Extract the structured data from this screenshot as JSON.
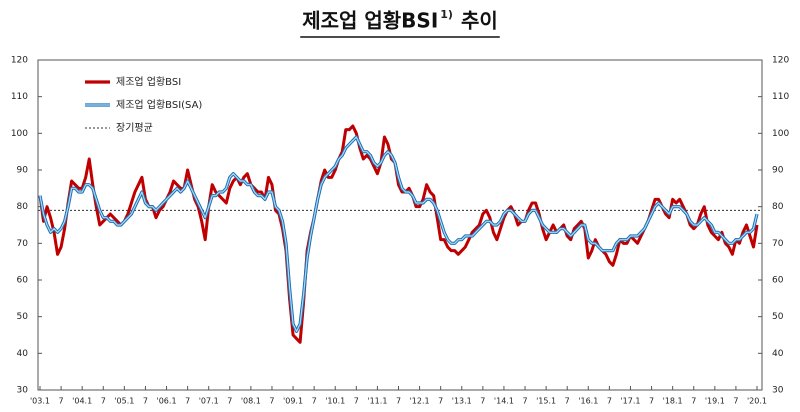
{
  "chart_data": {
    "type": "line",
    "title": "제조업 업황BSI",
    "title_note": "1)",
    "title_suffix": "추이",
    "categories": [
      "'03.1",
      null,
      null,
      null,
      null,
      null,
      "7",
      null,
      null,
      null,
      null,
      null,
      "'04.1",
      null,
      null,
      null,
      null,
      null,
      "7",
      null,
      null,
      null,
      null,
      null,
      "'05.1",
      null,
      null,
      null,
      null,
      null,
      "7",
      null,
      null,
      null,
      null,
      null,
      "'06.1",
      null,
      null,
      null,
      null,
      null,
      "7",
      null,
      null,
      null,
      null,
      null,
      "'07.1",
      null,
      null,
      null,
      null,
      null,
      "7",
      null,
      null,
      null,
      null,
      null,
      "'08.1",
      null,
      null,
      null,
      null,
      null,
      "7",
      null,
      null,
      null,
      null,
      null,
      "'09.1",
      null,
      null,
      null,
      null,
      null,
      "7",
      null,
      null,
      null,
      null,
      null,
      "'10.1",
      null,
      null,
      null,
      null,
      null,
      "7",
      null,
      null,
      null,
      null,
      null,
      "'11.1",
      null,
      null,
      null,
      null,
      null,
      "7",
      null,
      null,
      null,
      null,
      null,
      "'12.1",
      null,
      null,
      null,
      null,
      null,
      "7",
      null,
      null,
      null,
      null,
      null,
      "'13.1",
      null,
      null,
      null,
      null,
      null,
      "7",
      null,
      null,
      null,
      null,
      null,
      "'14.1",
      null,
      null,
      null,
      null,
      null,
      "7",
      null,
      null,
      null,
      null,
      null,
      "'15.1",
      null,
      null,
      null,
      null,
      null,
      "7",
      null,
      null,
      null,
      null,
      null,
      "'16.1",
      null,
      null,
      null,
      null,
      null,
      "7",
      null,
      null,
      null,
      null,
      null,
      "'17.1",
      null,
      null,
      null,
      null,
      null,
      "7",
      null,
      null,
      null,
      null,
      null,
      "'18.1",
      null,
      null,
      null,
      null,
      null,
      "7",
      null,
      null,
      null,
      null,
      null,
      "'19.1",
      null,
      null,
      null,
      null,
      null,
      "7",
      null,
      null,
      null,
      null,
      null,
      "'20.1"
    ],
    "series": [
      {
        "name": "제조업 업황BSI",
        "color": "#c00000",
        "values": [
          83,
          76,
          80,
          77,
          73,
          67,
          69,
          74,
          81,
          87,
          86,
          85,
          85,
          88,
          93,
          86,
          80,
          75,
          76,
          77,
          78,
          77,
          76,
          75,
          76,
          78,
          81,
          84,
          86,
          88,
          82,
          80,
          80,
          77,
          79,
          80,
          82,
          84,
          87,
          86,
          85,
          85,
          90,
          86,
          82,
          80,
          76,
          71,
          80,
          86,
          84,
          83,
          82,
          81,
          85,
          87,
          88,
          86,
          88,
          89,
          86,
          85,
          84,
          84,
          82,
          88,
          86,
          79,
          78,
          74,
          68,
          55,
          45,
          44,
          43,
          54,
          68,
          73,
          77,
          82,
          87,
          90,
          88,
          88,
          90,
          93,
          95,
          101,
          101,
          102,
          100,
          96,
          93,
          94,
          93,
          91,
          89,
          92,
          99,
          97,
          93,
          92,
          86,
          84,
          84,
          85,
          83,
          80,
          80,
          82,
          86,
          84,
          83,
          77,
          71,
          71,
          69,
          68,
          68,
          67,
          68,
          69,
          71,
          73,
          74,
          75,
          78,
          79,
          77,
          73,
          71,
          74,
          77,
          79,
          80,
          78,
          75,
          76,
          76,
          79,
          81,
          81,
          78,
          74,
          71,
          73,
          75,
          73,
          74,
          75,
          72,
          71,
          74,
          75,
          76,
          74,
          66,
          68,
          71,
          69,
          68,
          67,
          65,
          64,
          67,
          71,
          70,
          70,
          72,
          71,
          70,
          72,
          74,
          76,
          79,
          82,
          82,
          80,
          78,
          77,
          82,
          81,
          82,
          80,
          78,
          75,
          74,
          75,
          78,
          80,
          75,
          73,
          72,
          71,
          73,
          70,
          69,
          67,
          71,
          70,
          73,
          75,
          72,
          69,
          75
        ]
      },
      {
        "name": "제조업 업황BSI(SA)",
        "color": "#1f6fb5",
        "values": [
          83,
          78,
          75,
          73,
          74,
          73,
          74,
          76,
          80,
          85,
          85,
          84,
          84,
          86,
          86,
          85,
          82,
          79,
          77,
          77,
          76,
          76,
          75,
          75,
          76,
          77,
          78,
          80,
          82,
          84,
          81,
          80,
          80,
          79,
          80,
          81,
          82,
          83,
          84,
          85,
          84,
          85,
          87,
          85,
          83,
          81,
          79,
          77,
          80,
          83,
          83,
          84,
          84,
          85,
          88,
          89,
          88,
          87,
          87,
          86,
          86,
          84,
          83,
          83,
          82,
          84,
          84,
          80,
          79,
          76,
          70,
          58,
          48,
          46,
          48,
          56,
          66,
          72,
          77,
          82,
          86,
          88,
          89,
          90,
          91,
          93,
          94,
          96,
          97,
          98,
          99,
          97,
          95,
          95,
          94,
          92,
          91,
          92,
          94,
          95,
          94,
          92,
          88,
          85,
          84,
          84,
          83,
          81,
          81,
          81,
          82,
          82,
          81,
          79,
          76,
          73,
          71,
          70,
          70,
          71,
          71,
          72,
          72,
          72,
          73,
          74,
          75,
          76,
          76,
          75,
          75,
          76,
          78,
          79,
          79,
          78,
          77,
          76,
          76,
          78,
          79,
          79,
          77,
          75,
          74,
          73,
          73,
          73,
          74,
          74,
          73,
          72,
          73,
          74,
          75,
          75,
          71,
          70,
          70,
          69,
          68,
          68,
          68,
          68,
          70,
          71,
          71,
          71,
          72,
          72,
          72,
          73,
          74,
          76,
          78,
          80,
          81,
          80,
          79,
          78,
          80,
          80,
          80,
          79,
          78,
          76,
          75,
          75,
          76,
          77,
          76,
          75,
          73,
          73,
          72,
          71,
          70,
          70,
          71,
          71,
          72,
          73,
          73,
          74,
          78
        ]
      }
    ],
    "reference_line": {
      "name": "장기평균",
      "value": 79,
      "color": "#333333"
    },
    "ylim": [
      30,
      120
    ],
    "yticks": [
      30,
      40,
      50,
      60,
      70,
      80,
      90,
      100,
      110,
      120
    ],
    "y2lim": [
      30,
      120
    ],
    "y2ticks": [
      30,
      40,
      50,
      60,
      70,
      80,
      90,
      100,
      110,
      120
    ],
    "grid": false
  }
}
